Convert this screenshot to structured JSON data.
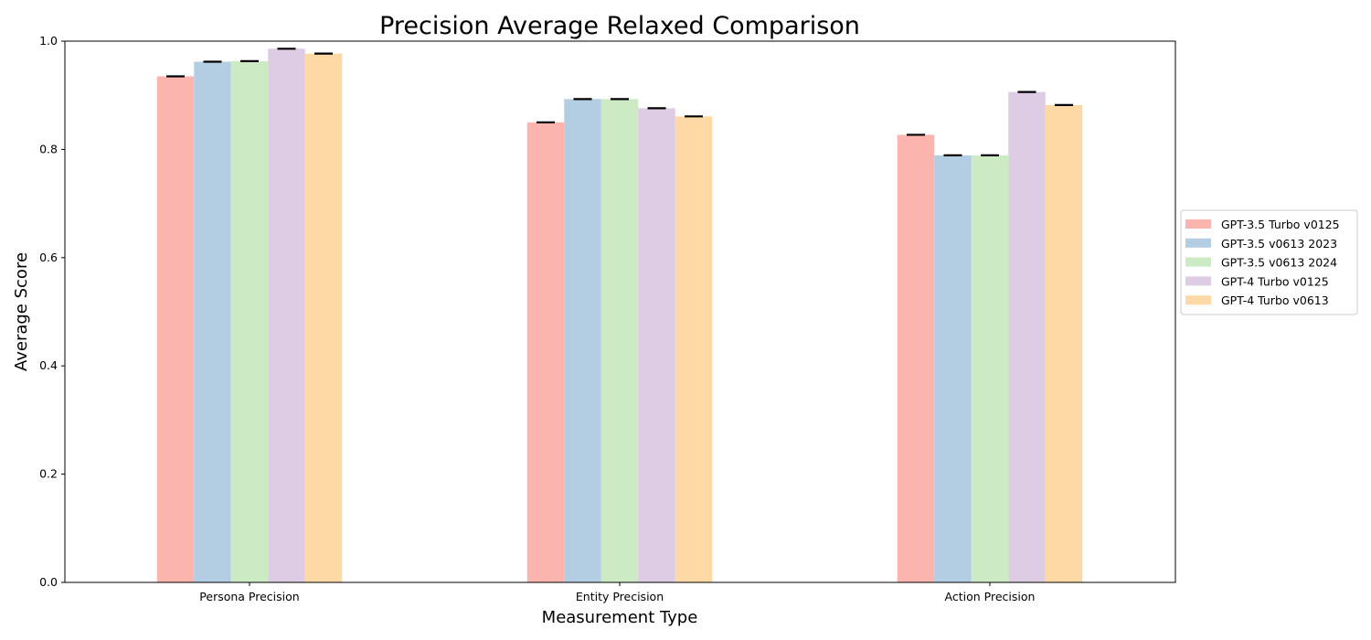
{
  "chart_data": {
    "type": "bar",
    "title": "Precision Average Relaxed Comparison",
    "xlabel": "Measurement Type",
    "ylabel": "Average Score",
    "ylim": [
      0,
      1.0
    ],
    "yticks": [
      "0.0",
      "0.2",
      "0.4",
      "0.6",
      "0.8",
      "1.0"
    ],
    "categories": [
      "Persona Precision",
      "Entity Precision",
      "Action Precision"
    ],
    "legend_position": "right",
    "grid": false,
    "series": [
      {
        "name": "GPT-3.5 Turbo v0125",
        "color": "#fbb4ae",
        "values": [
          0.935,
          0.85,
          0.827
        ]
      },
      {
        "name": "GPT-3.5 v0613 2023",
        "color": "#b3cde3",
        "values": [
          0.962,
          0.893,
          0.789
        ]
      },
      {
        "name": "GPT-3.5 v0613 2024",
        "color": "#ccebc5",
        "values": [
          0.963,
          0.893,
          0.789
        ]
      },
      {
        "name": "GPT-4 Turbo v0125",
        "color": "#decbe4",
        "values": [
          0.986,
          0.876,
          0.906
        ]
      },
      {
        "name": "GPT-4 Turbo v0613",
        "color": "#fed9a6",
        "values": [
          0.977,
          0.861,
          0.882
        ]
      }
    ]
  }
}
